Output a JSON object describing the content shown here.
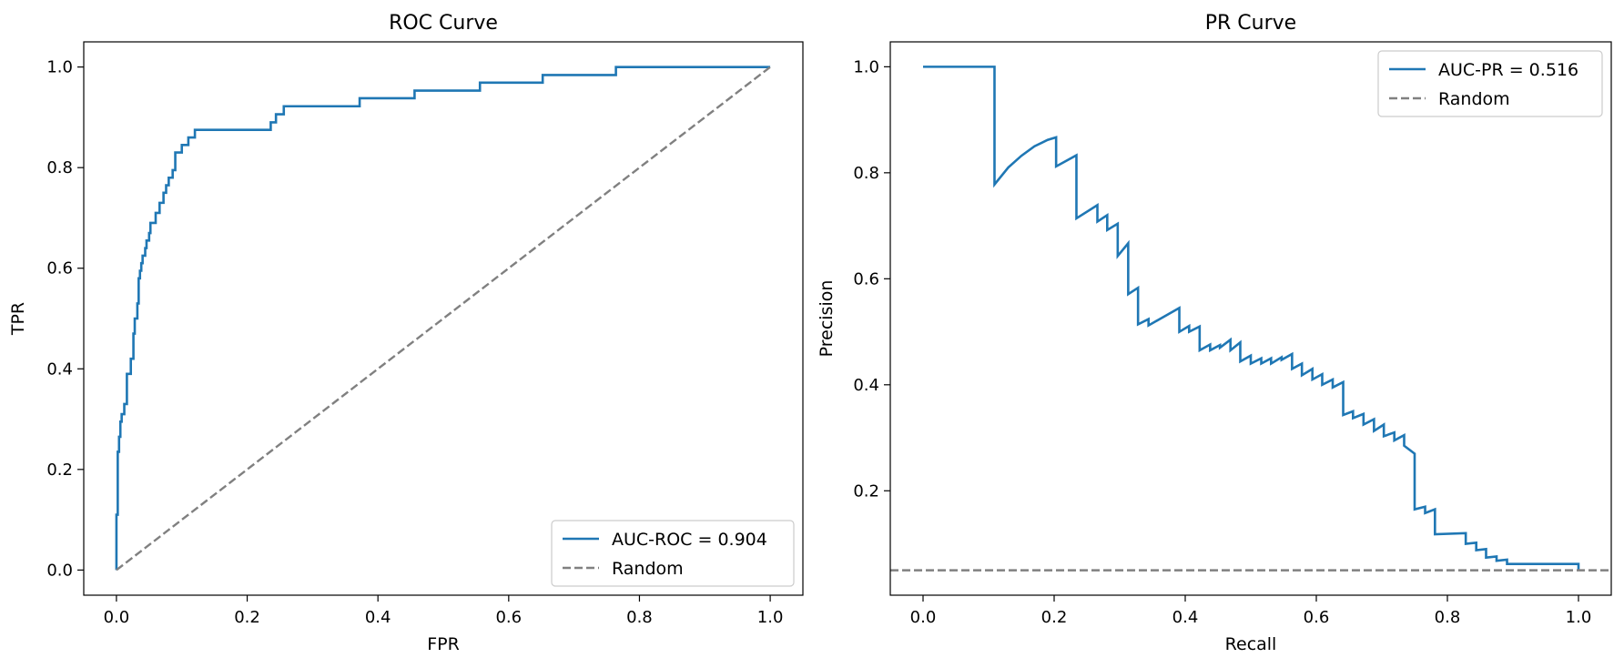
{
  "chart_data": [
    {
      "type": "line",
      "title": "ROC Curve",
      "xlabel": "FPR",
      "ylabel": "TPR",
      "xlim": [
        -0.05,
        1.05
      ],
      "ylim": [
        -0.05,
        1.05
      ],
      "xticks": [
        0.0,
        0.2,
        0.4,
        0.6,
        0.8,
        1.0
      ],
      "yticks": [
        0.0,
        0.2,
        0.4,
        0.6,
        0.8,
        1.0
      ],
      "xtick_labels": [
        "0.0",
        "0.2",
        "0.4",
        "0.6",
        "0.8",
        "1.0"
      ],
      "ytick_labels": [
        "0.0",
        "0.2",
        "0.4",
        "0.6",
        "0.8",
        "1.0"
      ],
      "grid": false,
      "legend_position": "lower-right",
      "series": [
        {
          "name": "AUC-ROC = 0.904",
          "color": "#1f77b4",
          "style": "solid",
          "x": [
            0.0,
            0.0,
            0.002,
            0.002,
            0.004,
            0.004,
            0.006,
            0.006,
            0.008,
            0.008,
            0.012,
            0.012,
            0.016,
            0.016,
            0.022,
            0.022,
            0.026,
            0.026,
            0.028,
            0.028,
            0.032,
            0.032,
            0.034,
            0.034,
            0.036,
            0.036,
            0.038,
            0.038,
            0.04,
            0.04,
            0.044,
            0.044,
            0.046,
            0.046,
            0.05,
            0.05,
            0.052,
            0.052,
            0.056,
            0.056,
            0.06,
            0.06,
            0.066,
            0.066,
            0.072,
            0.072,
            0.076,
            0.076,
            0.08,
            0.08,
            0.086,
            0.086,
            0.09,
            0.09,
            0.1,
            0.1,
            0.102,
            0.102,
            0.11,
            0.11,
            0.12,
            0.12,
            0.236,
            0.236,
            0.244,
            0.244,
            0.256,
            0.256,
            0.372,
            0.372,
            0.456,
            0.456,
            0.556,
            0.556,
            0.652,
            0.652,
            0.764,
            0.764,
            0.768,
            0.768,
            1.0
          ],
          "y": [
            0.0,
            0.11,
            0.11,
            0.235,
            0.235,
            0.265,
            0.265,
            0.295,
            0.295,
            0.31,
            0.31,
            0.33,
            0.33,
            0.39,
            0.39,
            0.42,
            0.42,
            0.47,
            0.47,
            0.5,
            0.5,
            0.53,
            0.53,
            0.58,
            0.58,
            0.595,
            0.595,
            0.61,
            0.61,
            0.625,
            0.625,
            0.64,
            0.64,
            0.655,
            0.655,
            0.67,
            0.67,
            0.69,
            0.69,
            0.69,
            0.69,
            0.71,
            0.71,
            0.73,
            0.73,
            0.75,
            0.75,
            0.765,
            0.765,
            0.78,
            0.78,
            0.795,
            0.795,
            0.83,
            0.83,
            0.845,
            0.845,
            0.845,
            0.845,
            0.86,
            0.86,
            0.875,
            0.875,
            0.89,
            0.89,
            0.906,
            0.906,
            0.922,
            0.922,
            0.938,
            0.938,
            0.953,
            0.953,
            0.969,
            0.969,
            0.984,
            0.984,
            1.0,
            1.0,
            1.0,
            1.0
          ]
        },
        {
          "name": "Random",
          "color": "#808080",
          "style": "dashed",
          "x": [
            0.0,
            1.0
          ],
          "y": [
            0.0,
            1.0
          ]
        }
      ]
    },
    {
      "type": "line",
      "title": "PR Curve",
      "xlabel": "Recall",
      "ylabel": "Precision",
      "xlim": [
        -0.05,
        1.05
      ],
      "ylim": [
        0.003,
        1.047
      ],
      "xticks": [
        0.0,
        0.2,
        0.4,
        0.6,
        0.8,
        1.0
      ],
      "yticks": [
        0.2,
        0.4,
        0.6,
        0.8,
        1.0
      ],
      "xtick_labels": [
        "0.0",
        "0.2",
        "0.4",
        "0.6",
        "0.8",
        "1.0"
      ],
      "ytick_labels": [
        "0.2",
        "0.4",
        "0.6",
        "0.8",
        "1.0"
      ],
      "grid": false,
      "legend_position": "upper-right",
      "series": [
        {
          "name": "AUC-PR = 0.516",
          "color": "#1f77b4",
          "style": "solid",
          "x": [
            0.0,
            0.109,
            0.109,
            0.13,
            0.15,
            0.17,
            0.19,
            0.203,
            0.203,
            0.234,
            0.234,
            0.266,
            0.266,
            0.281,
            0.281,
            0.297,
            0.297,
            0.313,
            0.313,
            0.328,
            0.328,
            0.344,
            0.344,
            0.391,
            0.391,
            0.406,
            0.406,
            0.422,
            0.422,
            0.438,
            0.438,
            0.453,
            0.453,
            0.469,
            0.469,
            0.484,
            0.484,
            0.5,
            0.5,
            0.516,
            0.516,
            0.531,
            0.531,
            0.547,
            0.547,
            0.563,
            0.563,
            0.578,
            0.578,
            0.594,
            0.594,
            0.609,
            0.609,
            0.625,
            0.625,
            0.641,
            0.641,
            0.656,
            0.656,
            0.672,
            0.672,
            0.688,
            0.688,
            0.703,
            0.703,
            0.719,
            0.719,
            0.734,
            0.734,
            0.75,
            0.75,
            0.766,
            0.766,
            0.781,
            0.781,
            0.828,
            0.828,
            0.844,
            0.844,
            0.859,
            0.859,
            0.875,
            0.875,
            0.891,
            0.891,
            0.906,
            0.906,
            0.922,
            0.922,
            0.938,
            0.938,
            0.953,
            0.953,
            0.969,
            0.969,
            1.0,
            1.0
          ],
          "y": [
            1.0,
            1.0,
            0.778,
            0.81,
            0.832,
            0.85,
            0.862,
            0.867,
            0.812,
            0.833,
            0.714,
            0.739,
            0.708,
            0.72,
            0.692,
            0.704,
            0.643,
            0.667,
            0.571,
            0.583,
            0.514,
            0.524,
            0.512,
            0.545,
            0.5,
            0.511,
            0.5,
            0.51,
            0.465,
            0.476,
            0.465,
            0.475,
            0.47,
            0.485,
            0.465,
            0.48,
            0.444,
            0.455,
            0.44,
            0.45,
            0.44,
            0.45,
            0.44,
            0.452,
            0.447,
            0.458,
            0.43,
            0.44,
            0.418,
            0.43,
            0.41,
            0.42,
            0.4,
            0.41,
            0.395,
            0.405,
            0.343,
            0.35,
            0.337,
            0.345,
            0.325,
            0.335,
            0.313,
            0.325,
            0.303,
            0.31,
            0.295,
            0.305,
            0.285,
            0.27,
            0.165,
            0.17,
            0.158,
            0.165,
            0.118,
            0.12,
            0.1,
            0.102,
            0.088,
            0.09,
            0.074,
            0.076,
            0.068,
            0.07,
            0.062,
            0.062,
            0.062,
            0.062,
            0.062,
            0.062,
            0.062,
            0.062,
            0.062,
            0.062,
            0.062,
            0.062,
            0.05
          ]
        },
        {
          "name": "Random",
          "color": "#808080",
          "style": "dashed",
          "x": [
            -0.05,
            1.05
          ],
          "y": [
            0.05,
            0.05
          ]
        }
      ]
    }
  ]
}
